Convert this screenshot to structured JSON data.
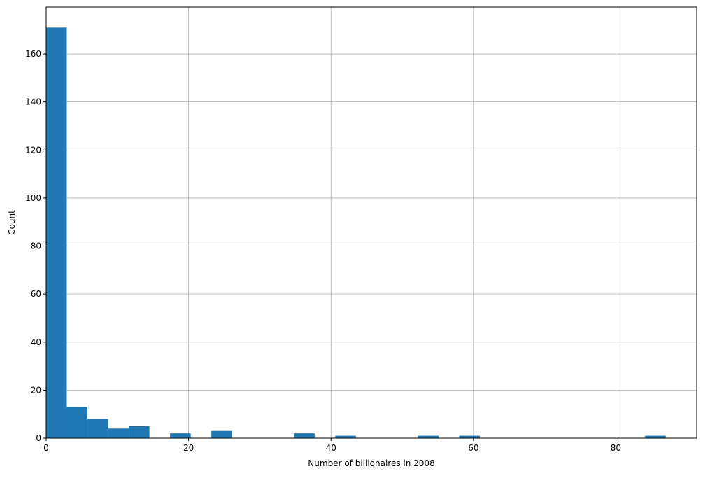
{
  "chart_data": {
    "type": "bar",
    "subtype": "histogram",
    "xlabel": "Number of billionaires in 2008",
    "ylabel": "Count",
    "xlim": [
      0,
      91.35
    ],
    "ylim": [
      0,
      179.55
    ],
    "xticks": [
      0,
      20,
      40,
      60,
      80
    ],
    "yticks": [
      0,
      20,
      40,
      60,
      80,
      100,
      120,
      140,
      160
    ],
    "grid": true,
    "bar_color": "#1f77b4",
    "bin_edges": [
      0,
      2.9,
      5.8,
      8.7,
      11.6,
      14.5,
      17.4,
      20.3,
      23.2,
      26.1,
      29.0,
      31.9,
      34.8,
      37.7,
      40.6,
      43.5,
      46.4,
      49.3,
      52.2,
      55.1,
      58.0,
      60.9,
      63.8,
      66.7,
      69.6,
      72.5,
      75.4,
      78.3,
      81.2,
      84.1,
      87.0
    ],
    "counts": [
      171,
      13,
      8,
      4,
      5,
      0,
      2,
      0,
      3,
      0,
      0,
      0,
      2,
      0,
      1,
      0,
      0,
      0,
      1,
      0,
      1,
      0,
      0,
      0,
      0,
      0,
      0,
      0,
      0,
      1
    ]
  }
}
